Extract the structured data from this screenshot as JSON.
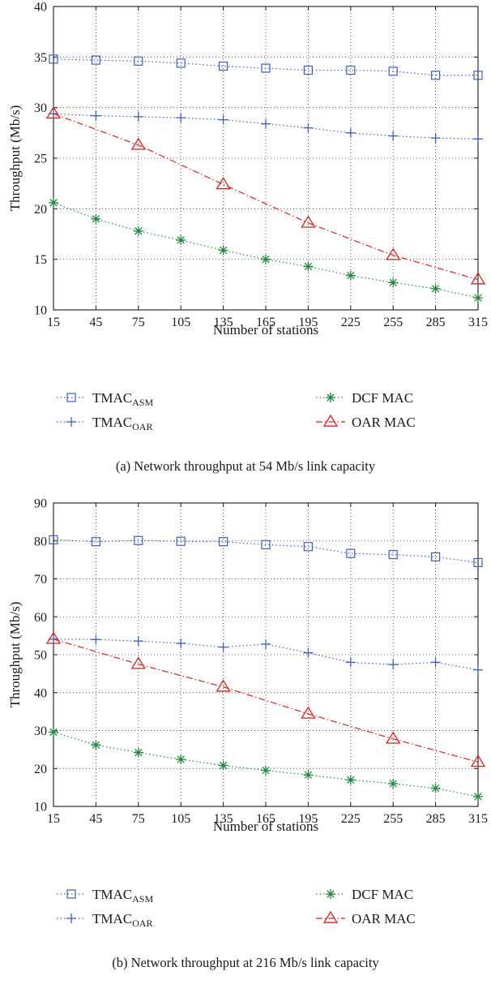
{
  "chart_data": [
    {
      "type": "line",
      "caption": "(a) Network throughput at 54 Mb/s link capacity",
      "xlabel": "Number of stations",
      "ylabel": "Throughput (Mb/s)",
      "x": [
        15,
        45,
        75,
        105,
        135,
        165,
        195,
        225,
        255,
        285,
        315
      ],
      "xlim": [
        15,
        315
      ],
      "ylim": [
        10,
        40
      ],
      "yticks": [
        10,
        15,
        20,
        25,
        30,
        35,
        40
      ],
      "grid": true,
      "legend_position": "below",
      "series": [
        {
          "name": "TMAC",
          "sub": "ASM",
          "color": "#3a5fcd",
          "marker": "square",
          "line": "dotted",
          "values": [
            34.8,
            34.7,
            34.6,
            34.4,
            34.1,
            33.9,
            33.7,
            33.7,
            33.6,
            33.2,
            33.2
          ]
        },
        {
          "name": "TMAC",
          "sub": "OAR",
          "color": "#3a5fcd",
          "marker": "plus",
          "line": "dotted",
          "values": [
            29.4,
            29.2,
            29.1,
            29.0,
            28.8,
            28.4,
            28.0,
            27.5,
            27.2,
            27.0,
            26.9
          ]
        },
        {
          "name": "DCF MAC",
          "sub": "",
          "color": "#1f8a3a",
          "marker": "asterisk",
          "line": "dotted",
          "values": [
            20.6,
            19.0,
            17.8,
            16.9,
            15.9,
            15.0,
            14.3,
            13.4,
            12.7,
            12.1,
            11.2
          ]
        },
        {
          "name": "OAR MAC",
          "sub": "",
          "color": "#e0201b",
          "marker": "triangle",
          "line": "dashdot",
          "x": [
            15,
            75,
            135,
            195,
            255,
            315
          ],
          "values": [
            29.4,
            26.3,
            22.4,
            18.6,
            15.4,
            13.0
          ]
        }
      ]
    },
    {
      "type": "line",
      "caption": "(b) Network throughput at 216 Mb/s link capacity",
      "xlabel": "Number of stations",
      "ylabel": "Throughput (Mb/s)",
      "x": [
        15,
        45,
        75,
        105,
        135,
        165,
        195,
        225,
        255,
        285,
        315
      ],
      "xlim": [
        15,
        315
      ],
      "ylim": [
        10,
        90
      ],
      "yticks": [
        10,
        20,
        30,
        40,
        50,
        60,
        70,
        80,
        90
      ],
      "grid": true,
      "legend_position": "below",
      "series": [
        {
          "name": "TMAC",
          "sub": "ASM",
          "color": "#3a5fcd",
          "marker": "square",
          "line": "dotted",
          "values": [
            80.3,
            79.8,
            80.1,
            79.9,
            79.8,
            79.0,
            78.5,
            76.7,
            76.4,
            75.8,
            74.3
          ]
        },
        {
          "name": "TMAC",
          "sub": "OAR",
          "color": "#3a5fcd",
          "marker": "plus",
          "line": "dotted",
          "values": [
            54.1,
            54.0,
            53.6,
            53.0,
            52.0,
            52.8,
            50.5,
            48.0,
            47.4,
            48.0,
            46.0
          ]
        },
        {
          "name": "DCF MAC",
          "sub": "",
          "color": "#1f8a3a",
          "marker": "asterisk",
          "line": "dotted",
          "values": [
            29.6,
            26.2,
            24.2,
            22.4,
            20.8,
            19.5,
            18.3,
            17.0,
            16.0,
            14.8,
            12.6
          ]
        },
        {
          "name": "OAR MAC",
          "sub": "",
          "color": "#e0201b",
          "marker": "triangle",
          "line": "dashdot",
          "x": [
            15,
            75,
            135,
            195,
            255,
            315
          ],
          "values": [
            54.1,
            47.5,
            41.5,
            34.4,
            27.8,
            21.7
          ]
        }
      ]
    }
  ]
}
